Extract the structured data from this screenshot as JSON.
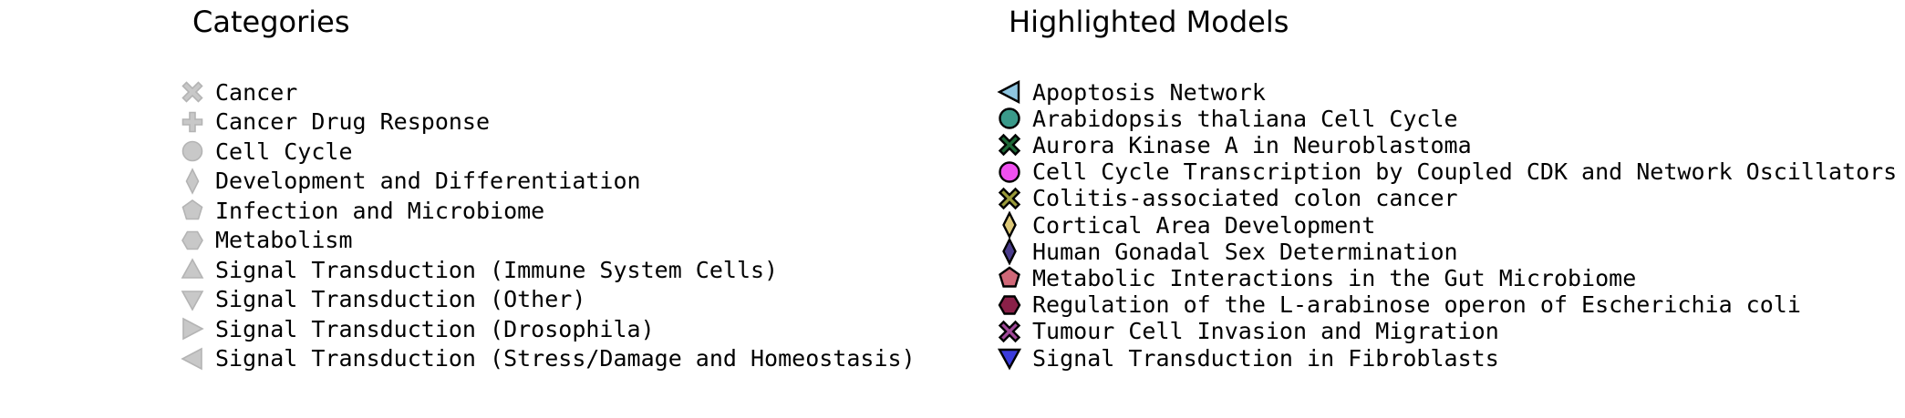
{
  "categories_legend": {
    "title": "Categories",
    "items": [
      {
        "label": "Cancer",
        "marker": "x-cross",
        "fill": "#c8c8c8",
        "stroke": "#b4b4b4"
      },
      {
        "label": "Cancer Drug Response",
        "marker": "plus",
        "fill": "#c8c8c8",
        "stroke": "#b4b4b4"
      },
      {
        "label": "Cell Cycle",
        "marker": "circle",
        "fill": "#c8c8c8",
        "stroke": "#b4b4b4"
      },
      {
        "label": "Development and Differentiation",
        "marker": "thin-diamond",
        "fill": "#c8c8c8",
        "stroke": "#b4b4b4"
      },
      {
        "label": "Infection and Microbiome",
        "marker": "pentagon",
        "fill": "#c8c8c8",
        "stroke": "#b4b4b4"
      },
      {
        "label": "Metabolism",
        "marker": "hexagon",
        "fill": "#c8c8c8",
        "stroke": "#b4b4b4"
      },
      {
        "label": "Signal Transduction (Immune System Cells)",
        "marker": "triangle-up",
        "fill": "#c8c8c8",
        "stroke": "#b4b4b4"
      },
      {
        "label": "Signal Transduction (Other)",
        "marker": "triangle-down",
        "fill": "#c8c8c8",
        "stroke": "#b4b4b4"
      },
      {
        "label": "Signal Transduction (Drosophila)",
        "marker": "triangle-right",
        "fill": "#c8c8c8",
        "stroke": "#b4b4b4"
      },
      {
        "label": "Signal Transduction (Stress/Damage and Homeostasis)",
        "marker": "triangle-left",
        "fill": "#c8c8c8",
        "stroke": "#b4b4b4"
      }
    ]
  },
  "models_legend": {
    "title": "Highlighted Models",
    "items": [
      {
        "label": "Apoptosis Network",
        "marker": "triangle-left",
        "fill": "#8ec5e0",
        "stroke": "#000000"
      },
      {
        "label": "Arabidopsis thaliana Cell Cycle",
        "marker": "circle",
        "fill": "#3a9a8a",
        "stroke": "#000000"
      },
      {
        "label": "Aurora Kinase A in Neuroblastoma",
        "marker": "x-cross",
        "fill": "#1e6a38",
        "stroke": "#000000"
      },
      {
        "label": "Cell Cycle Transcription by Coupled CDK and Network Oscillators",
        "marker": "circle",
        "fill": "#f050f0",
        "stroke": "#000000"
      },
      {
        "label": "Colitis-associated colon cancer",
        "marker": "x-cross",
        "fill": "#9a9a3a",
        "stroke": "#000000"
      },
      {
        "label": "Cortical Area Development",
        "marker": "thin-diamond",
        "fill": "#dcc878",
        "stroke": "#000000"
      },
      {
        "label": "Human Gonadal Sex Determination",
        "marker": "thin-diamond",
        "fill": "#4a3c8c",
        "stroke": "#000000"
      },
      {
        "label": "Metabolic Interactions in the Gut Microbiome",
        "marker": "pentagon",
        "fill": "#d06878",
        "stroke": "#000000"
      },
      {
        "label": "Regulation of the L-arabinose operon of Escherichia coli",
        "marker": "hexagon",
        "fill": "#8a2048",
        "stroke": "#000000"
      },
      {
        "label": "Tumour Cell Invasion and Migration",
        "marker": "x-cross",
        "fill": "#a04898",
        "stroke": "#000000"
      },
      {
        "label": "Signal Transduction in Fibroblasts",
        "marker": "triangle-down",
        "fill": "#3c3cdc",
        "stroke": "#000000"
      }
    ]
  }
}
